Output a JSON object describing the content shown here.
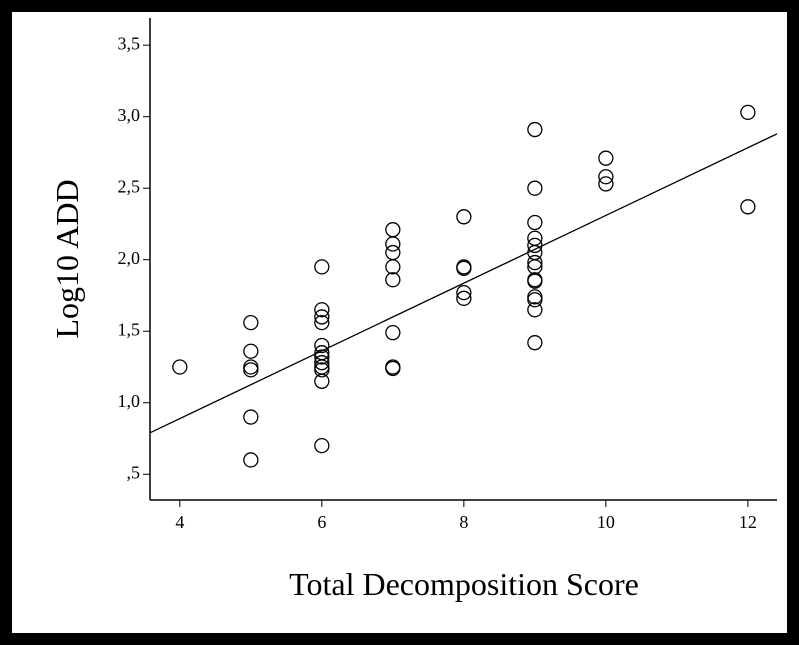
{
  "chart_data": {
    "type": "scatter",
    "x_label": "Total Decomposition Score",
    "y_label": "Log10 ADD",
    "xlim": [
      3.58,
      12.41
    ],
    "ylim": [
      0.32,
      3.69
    ],
    "xticks": [
      4,
      6,
      8,
      10,
      12
    ],
    "yticks": [
      {
        "value": 0.5,
        "label": ",5"
      },
      {
        "value": 1.0,
        "label": "1,0"
      },
      {
        "value": 1.5,
        "label": "1,5"
      },
      {
        "value": 2.0,
        "label": "2,0"
      },
      {
        "value": 2.5,
        "label": "2,5"
      },
      {
        "value": 3.0,
        "label": "3,0"
      },
      {
        "value": 3.5,
        "label": "3,5"
      }
    ],
    "points": {
      "x": [
        4,
        5,
        5,
        5,
        5,
        5,
        5,
        6,
        6,
        6,
        6,
        6,
        6,
        6,
        6,
        6,
        6,
        6,
        6,
        7,
        7,
        7,
        7,
        7,
        7,
        7,
        7,
        8,
        8,
        8,
        8,
        8,
        9,
        9,
        9,
        9,
        9,
        9,
        9,
        9,
        9,
        9,
        9,
        9,
        9,
        9,
        10,
        10,
        10,
        12,
        12
      ],
      "y": [
        1.25,
        1.56,
        1.36,
        1.25,
        1.23,
        0.9,
        0.6,
        1.95,
        1.65,
        1.6,
        1.56,
        1.4,
        1.35,
        1.32,
        1.28,
        1.25,
        1.23,
        1.15,
        0.7,
        2.21,
        2.11,
        2.05,
        1.95,
        1.86,
        1.49,
        1.25,
        1.24,
        2.3,
        1.95,
        1.94,
        1.77,
        1.73,
        2.91,
        2.5,
        2.26,
        2.15,
        2.1,
        2.05,
        1.98,
        1.95,
        1.86,
        1.85,
        1.74,
        1.72,
        1.65,
        1.42,
        2.71,
        2.58,
        2.53,
        3.03,
        2.37
      ]
    },
    "fit": {
      "x": [
        3.58,
        12.41
      ],
      "y": [
        0.79,
        2.88
      ]
    }
  }
}
